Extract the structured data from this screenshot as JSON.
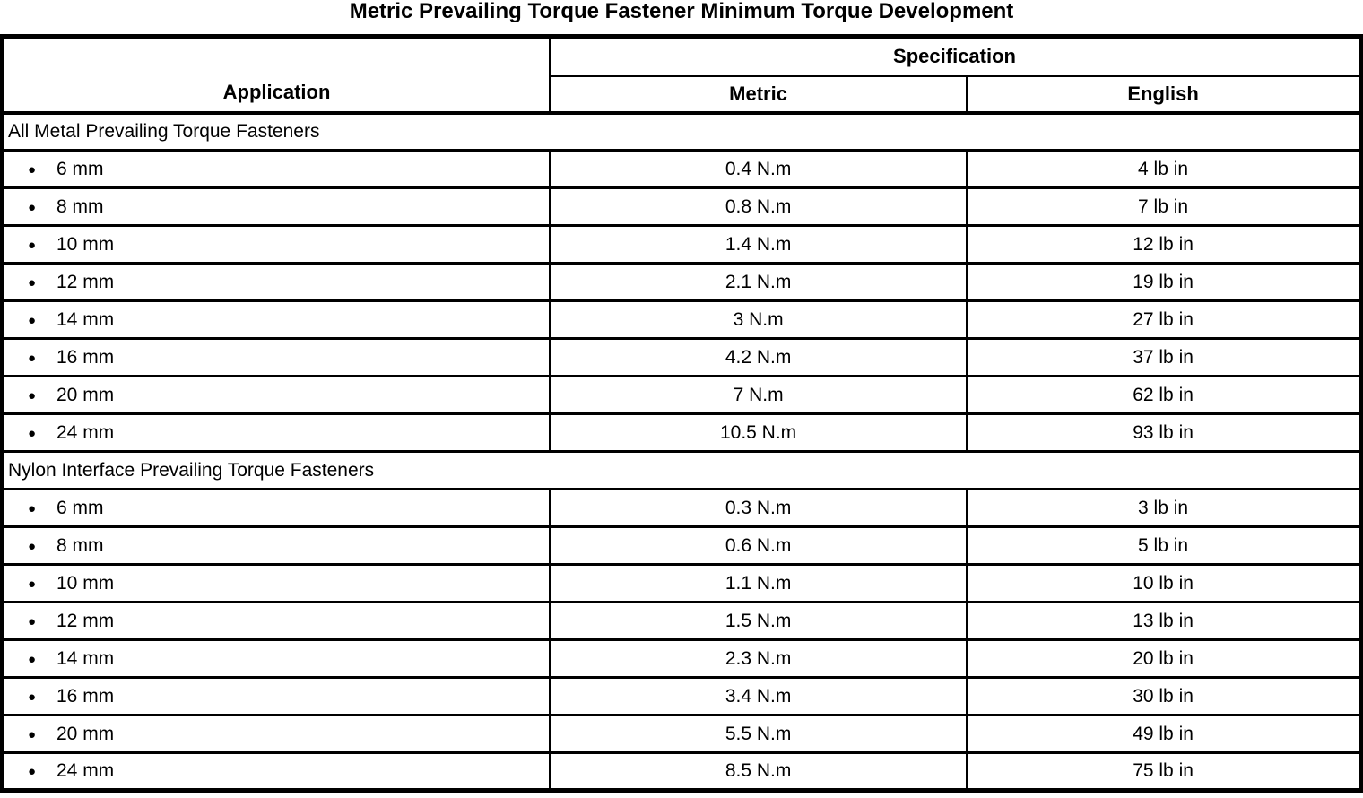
{
  "title": "Metric Prevailing Torque Fastener Minimum Torque Development",
  "icons": {
    "bullet": "●"
  },
  "table": {
    "headers": {
      "application": "Application",
      "specification": "Specification",
      "metric": "Metric",
      "english": "English"
    },
    "sections": [
      {
        "name": "All Metal Prevailing Torque Fasteners",
        "rows": [
          {
            "application": "6 mm",
            "metric": "0.4 N.m",
            "english": "4 lb in"
          },
          {
            "application": "8 mm",
            "metric": "0.8 N.m",
            "english": "7 lb in"
          },
          {
            "application": "10 mm",
            "metric": "1.4 N.m",
            "english": "12 lb in"
          },
          {
            "application": "12 mm",
            "metric": "2.1 N.m",
            "english": "19 lb in"
          },
          {
            "application": "14 mm",
            "metric": "3 N.m",
            "english": "27 lb in"
          },
          {
            "application": "16 mm",
            "metric": "4.2 N.m",
            "english": "37 lb in"
          },
          {
            "application": "20 mm",
            "metric": "7 N.m",
            "english": "62 lb in"
          },
          {
            "application": "24 mm",
            "metric": "10.5 N.m",
            "english": "93 lb in"
          }
        ]
      },
      {
        "name": "Nylon Interface Prevailing Torque Fasteners",
        "rows": [
          {
            "application": "6 mm",
            "metric": "0.3 N.m",
            "english": "3 lb in"
          },
          {
            "application": "8 mm",
            "metric": "0.6 N.m",
            "english": "5 lb in"
          },
          {
            "application": "10 mm",
            "metric": "1.1 N.m",
            "english": "10 lb in"
          },
          {
            "application": "12 mm",
            "metric": "1.5 N.m",
            "english": "13 lb in"
          },
          {
            "application": "14 mm",
            "metric": "2.3 N.m",
            "english": "20 lb in"
          },
          {
            "application": "16 mm",
            "metric": "3.4 N.m",
            "english": "30 lb in"
          },
          {
            "application": "20 mm",
            "metric": "5.5 N.m",
            "english": "49 lb in"
          },
          {
            "application": "24 mm",
            "metric": "8.5 N.m",
            "english": "75 lb in"
          }
        ]
      }
    ]
  }
}
